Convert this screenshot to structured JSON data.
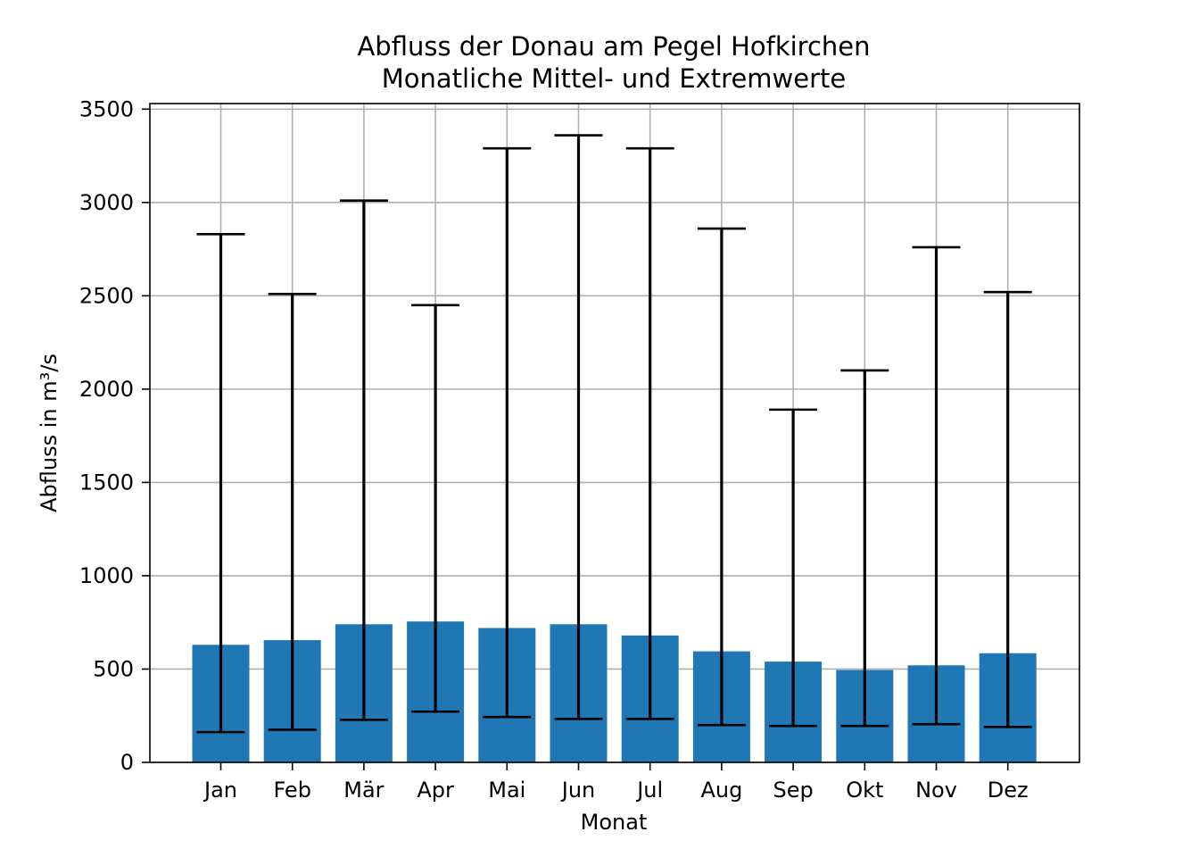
{
  "chart_data": {
    "type": "bar",
    "title": "Abfluss der Donau am Pegel Hofkirchen",
    "subtitle": "Monatliche Mittel- und Extremwerte",
    "xlabel": "Monat",
    "ylabel": "Abfluss in m³/s",
    "ylim": [
      0,
      3530
    ],
    "yticks": [
      0,
      500,
      1000,
      1500,
      2000,
      2500,
      3000,
      3500
    ],
    "grid": true,
    "categories": [
      "Jan",
      "Feb",
      "Mär",
      "Apr",
      "Mai",
      "Jun",
      "Jul",
      "Aug",
      "Sep",
      "Okt",
      "Nov",
      "Dez"
    ],
    "series": [
      {
        "values": [
          630,
          655,
          740,
          755,
          720,
          740,
          680,
          595,
          540,
          495,
          520,
          585
        ]
      }
    ],
    "error_range": {
      "min": [
        162,
        175,
        228,
        272,
        243,
        233,
        233,
        200,
        195,
        195,
        205,
        190
      ],
      "max": [
        2830,
        2510,
        3010,
        2450,
        3290,
        3360,
        3290,
        2860,
        1890,
        2100,
        2760,
        2520
      ]
    },
    "colors": {
      "bar": "#1f77b4",
      "errorbar": "#000000",
      "grid": "#b0b0b0"
    }
  }
}
